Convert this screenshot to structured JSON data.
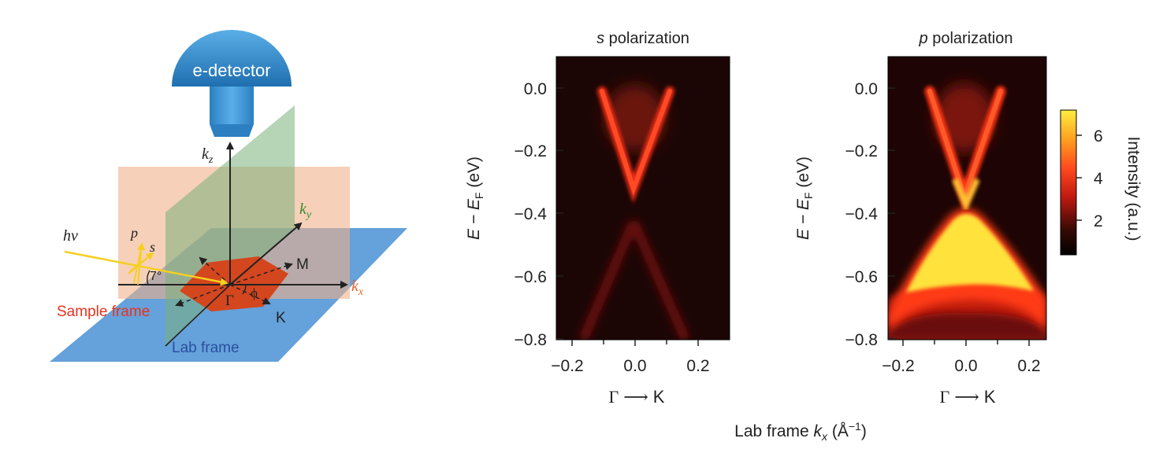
{
  "schematic": {
    "detector_label": "e-detector",
    "axis_kz": "k",
    "axis_kz_sub": "z",
    "axis_ky": "k",
    "axis_ky_sub": "y",
    "axis_kx": "k",
    "axis_kx_sub": "x",
    "photon_label": "hν",
    "pol_p": "p",
    "pol_s": "s",
    "angle_label": "7°",
    "point_M": "M",
    "point_K": "K",
    "point_Gamma": "Γ",
    "angle_phi": "ϕ",
    "sample_frame_label": "Sample frame",
    "lab_frame_label": "Lab frame",
    "colors": {
      "detector": "#2f86c8",
      "lab_plane": "#4a90d4",
      "sample_frame_text": "#e8321e",
      "lab_frame_text": "#2a4fa0",
      "ky_label": "#3a8a2a",
      "kx_label": "#e8622a",
      "photon": "#f5d020",
      "sample": "#d4461e"
    }
  },
  "panels": [
    {
      "title_italic": "s",
      "title_rest": " polarization",
      "ylabel": "E − E",
      "ylabel_sub": "F",
      "ylabel_unit": " (eV)",
      "xlabel_left": "Γ",
      "xlabel_arrow": "⟶",
      "xlabel_right": "K",
      "yticks": [
        "0.0",
        "−0.2",
        "−0.4",
        "−0.6",
        "−0.8"
      ],
      "xticks": [
        "−0.2",
        "0.0",
        "0.2"
      ]
    },
    {
      "title_italic": "p",
      "title_rest": " polarization",
      "ylabel": "E − E",
      "ylabel_sub": "F",
      "ylabel_unit": " (eV)",
      "xlabel_left": "Γ",
      "xlabel_arrow": "⟶",
      "xlabel_right": "K",
      "yticks": [
        "0.0",
        "−0.2",
        "−0.4",
        "−0.6",
        "−0.8"
      ],
      "xticks": [
        "−0.2",
        "0.0",
        "0.2"
      ]
    }
  ],
  "colorbar": {
    "label": "Intensity (a.u.)",
    "ticks": [
      "6",
      "4",
      "2"
    ]
  },
  "caption": {
    "text": "Lab frame ",
    "italic": "k",
    "sub": "x",
    "unit": " (Å",
    "sup": "−1",
    "close": ")"
  }
}
